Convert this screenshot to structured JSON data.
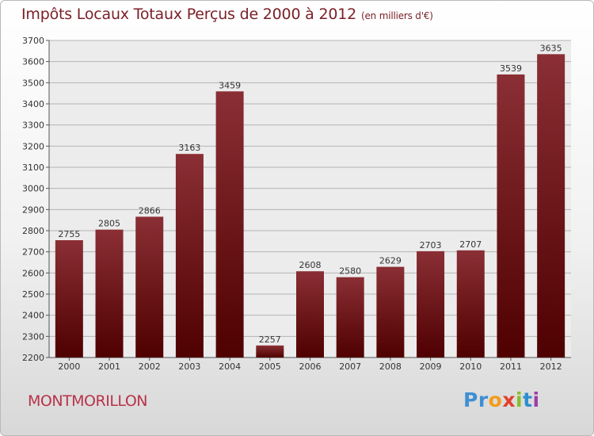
{
  "chart_data": {
    "type": "bar",
    "title": "Impôts Locaux Totaux Perçus de 2000 à 2012",
    "subtitle": "(en milliers d'€)",
    "categories": [
      "2000",
      "2001",
      "2002",
      "2003",
      "2004",
      "2005",
      "2006",
      "2007",
      "2008",
      "2009",
      "2010",
      "2011",
      "2012"
    ],
    "values": [
      2755,
      2805,
      2866,
      3163,
      3459,
      2257,
      2608,
      2580,
      2629,
      2703,
      2707,
      3539,
      3635
    ],
    "ylim": [
      2200,
      3700
    ],
    "yticks": [
      2200,
      2300,
      2400,
      2500,
      2600,
      2700,
      2800,
      2900,
      3000,
      3100,
      3200,
      3300,
      3400,
      3500,
      3600,
      3700
    ],
    "xlabel": "",
    "ylabel": "",
    "grid": true,
    "bar_color_top": "#8a2f35",
    "bar_color_bottom": "#4f0000"
  },
  "location": "MONTMORILLON",
  "brand": {
    "p1": "Pr",
    "p2": "o",
    "p3": "x",
    "p4": "i",
    "p5": "t",
    "p6": "i"
  }
}
